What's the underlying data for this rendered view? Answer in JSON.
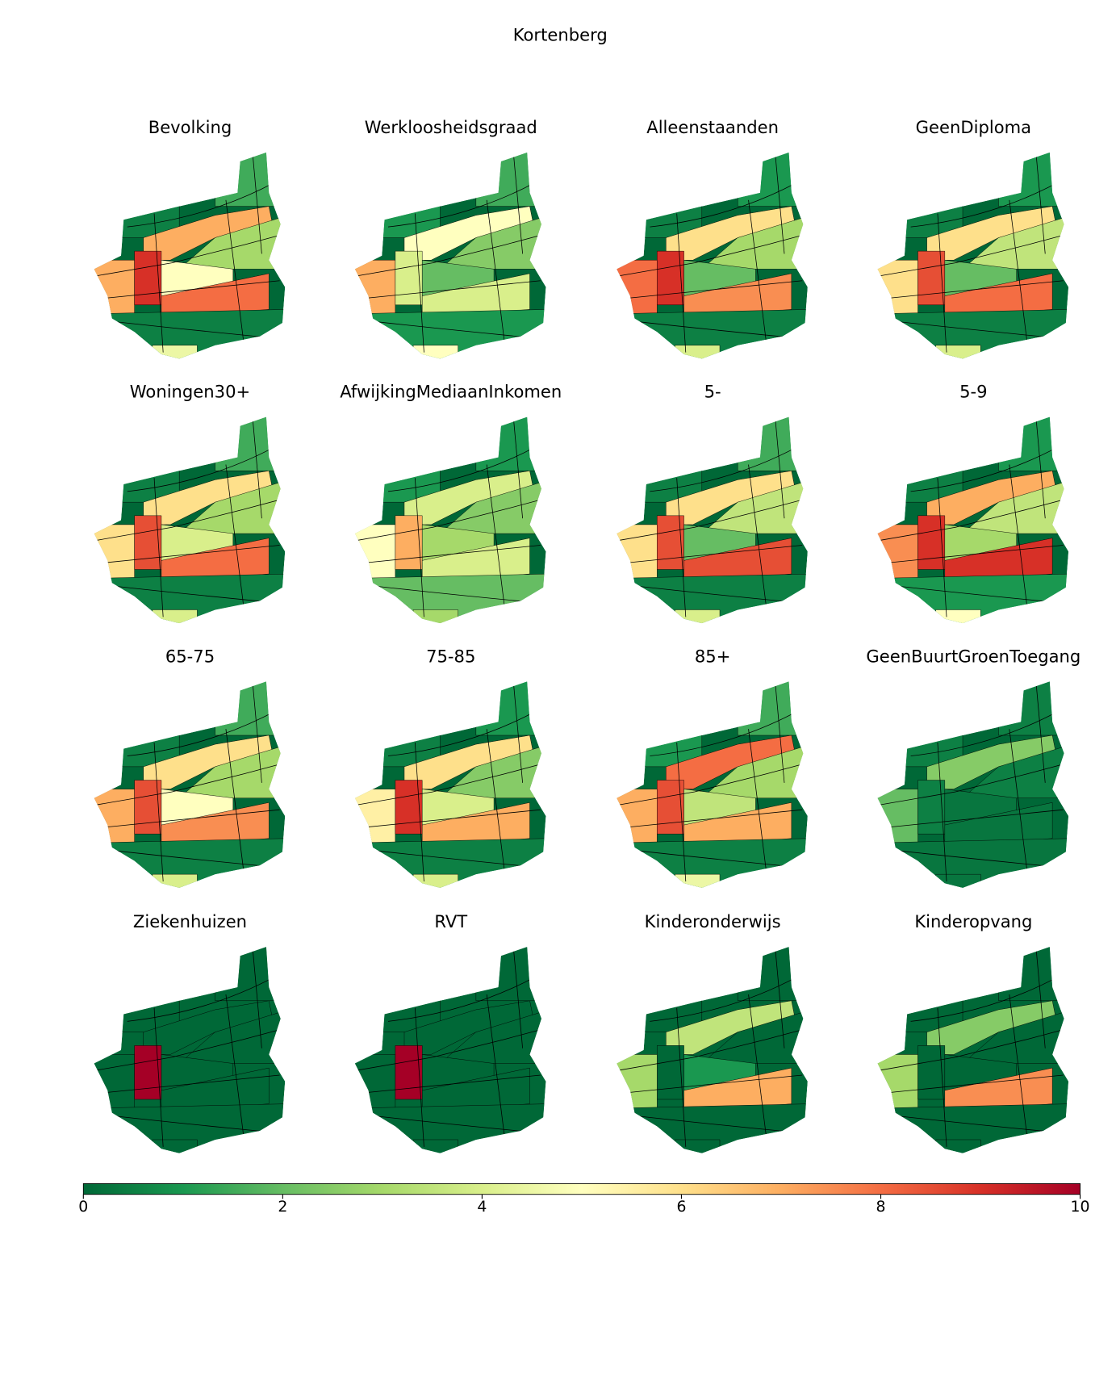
{
  "title": "Kortenberg",
  "panels": [
    {
      "title": "Bevolking",
      "values": [
        1.5,
        0.5,
        7,
        3,
        7,
        9,
        5,
        8,
        0.5,
        4.5
      ]
    },
    {
      "title": "Werkloosheidsgraad",
      "values": [
        1.5,
        1,
        5,
        2.5,
        7,
        4,
        2,
        4,
        1,
        5
      ]
    },
    {
      "title": "Alleenstaanden",
      "values": [
        1,
        0.5,
        6,
        3,
        8,
        9,
        2,
        7.5,
        0.5,
        4
      ]
    },
    {
      "title": "GeenDiploma",
      "values": [
        1,
        0.5,
        6,
        3.5,
        6,
        8.5,
        2,
        8,
        0.5,
        4
      ]
    },
    {
      "title": "Woningen30+",
      "values": [
        1.5,
        0.5,
        6,
        3,
        6,
        8.5,
        4,
        8,
        0.5,
        4
      ]
    },
    {
      "title": "AfwijkingMediaanInkomen",
      "values": [
        1,
        1,
        4,
        2.5,
        5,
        7,
        3,
        4,
        2,
        3
      ]
    },
    {
      "title": "5-",
      "values": [
        1.5,
        0.5,
        6,
        3.5,
        6,
        8.5,
        2,
        8.5,
        0.5,
        4
      ]
    },
    {
      "title": "5-9",
      "values": [
        1,
        0.5,
        7,
        3.5,
        7.5,
        9,
        3,
        9,
        1,
        5
      ]
    },
    {
      "title": "65-75",
      "values": [
        1.5,
        0.5,
        6,
        3,
        7,
        8.5,
        5,
        7.5,
        0.5,
        4
      ]
    },
    {
      "title": "75-85",
      "values": [
        1,
        0.5,
        6,
        2.5,
        5.5,
        9,
        4,
        7,
        0.5,
        4
      ]
    },
    {
      "title": "85+",
      "values": [
        1.5,
        1,
        8,
        3,
        7,
        8.5,
        3.5,
        7,
        0.5,
        4.5
      ]
    },
    {
      "title": "GeenBuurtGroenToegang",
      "values": [
        0.5,
        0.5,
        2.5,
        0.5,
        2,
        0.5,
        0.3,
        0.3,
        0.3,
        0.3
      ]
    },
    {
      "title": "Ziekenhuizen",
      "values": [
        0,
        0,
        0,
        0,
        0,
        10,
        0,
        0,
        0,
        0
      ]
    },
    {
      "title": "RVT",
      "values": [
        0,
        0,
        0,
        0,
        0,
        10,
        0,
        0,
        0,
        0
      ]
    },
    {
      "title": "Kinderonderwijs",
      "values": [
        0,
        0,
        3.5,
        0,
        3,
        0,
        1,
        7,
        0,
        0
      ]
    },
    {
      "title": "Kinderopvang",
      "values": [
        0,
        0,
        2.5,
        0,
        3,
        0,
        0,
        7.5,
        0,
        0
      ]
    }
  ],
  "colorbar": {
    "lim": [
      0,
      10
    ],
    "ticks": [
      0,
      2,
      4,
      6,
      8,
      10
    ],
    "colormap": [
      "#006837",
      "#1a9850",
      "#66bd63",
      "#a6d96a",
      "#d9ef8b",
      "#ffffbf",
      "#fee08b",
      "#fdae61",
      "#f46d43",
      "#d73027",
      "#a50026"
    ]
  }
}
